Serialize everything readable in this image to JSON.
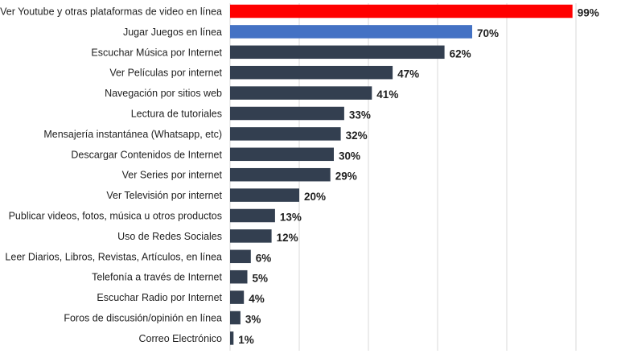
{
  "chart_data": {
    "type": "bar",
    "orientation": "horizontal",
    "title": "",
    "xlabel": "",
    "ylabel": "",
    "xlim": [
      0,
      100
    ],
    "grid": true,
    "legend": "none",
    "value_suffix": "%",
    "categories": [
      "Ver Youtube y otras plataformas de video en línea",
      "Jugar Juegos en línea",
      "Escuchar Música por Internet",
      "Ver Películas por internet",
      "Navegación por sitios web",
      "Lectura de tutoriales",
      "Mensajería instantánea (Whatsapp, etc)",
      "Descargar Contenidos de Internet",
      "Ver Series por internet",
      "Ver Televisión por internet",
      "Publicar videos, fotos, música u otros productos",
      "Uso de Redes Sociales",
      "Leer Diarios, Libros, Revistas, Artículos, en línea",
      "Telefonía a través de Internet",
      "Escuchar Radio por Internet",
      "Foros de discusión/opinión en línea",
      "Correo Electrónico"
    ],
    "values": [
      99,
      70,
      62,
      47,
      41,
      33,
      32,
      30,
      29,
      20,
      13,
      12,
      6,
      5,
      4,
      3,
      1
    ],
    "value_labels": [
      "99%",
      "70%",
      "62%",
      "47%",
      "41%",
      "33%",
      "32%",
      "30%",
      "29%",
      "20%",
      "13%",
      "12%",
      "6%",
      "5%",
      "4%",
      "3%",
      "1%"
    ],
    "colors": {
      "default": "#333f50",
      "highlight_first": "#ff0000",
      "highlight_second": "#4472c4"
    },
    "bar_colors": [
      "#ff0000",
      "#4472c4",
      "#333f50",
      "#333f50",
      "#333f50",
      "#333f50",
      "#333f50",
      "#333f50",
      "#333f50",
      "#333f50",
      "#333f50",
      "#333f50",
      "#333f50",
      "#333f50",
      "#333f50",
      "#333f50",
      "#333f50"
    ]
  }
}
